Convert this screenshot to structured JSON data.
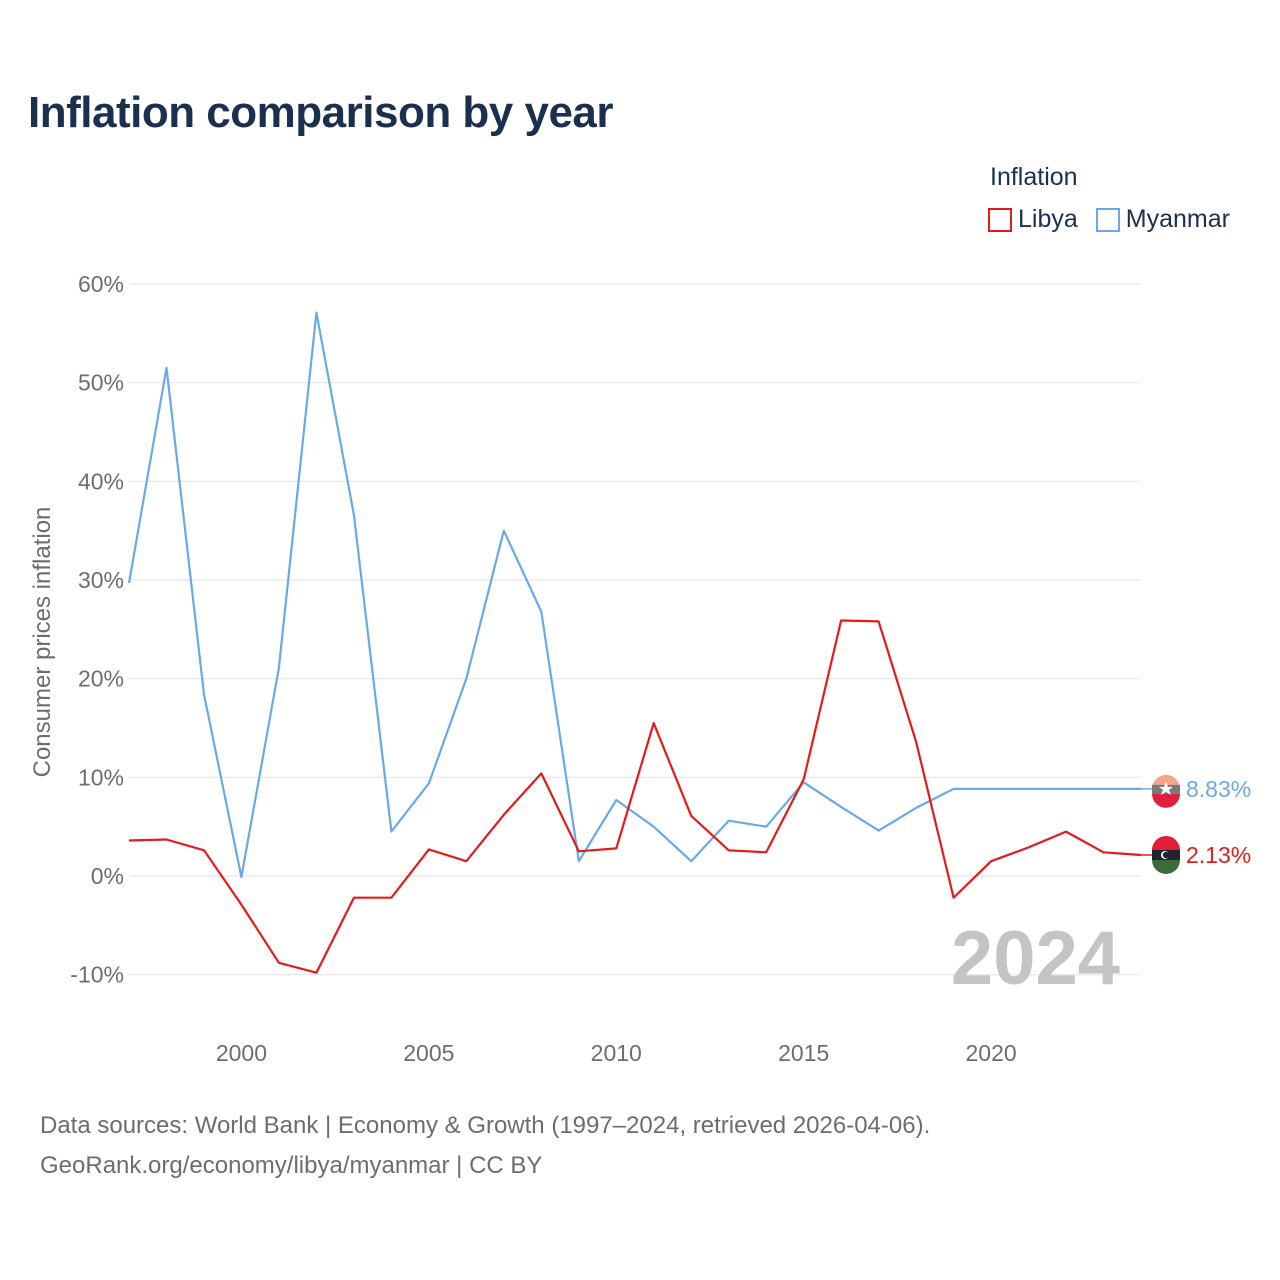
{
  "title": "Inflation comparison by year",
  "legend": {
    "title": "Inflation",
    "items": [
      {
        "label": "Libya",
        "color": "#e41a1c"
      },
      {
        "label": "Myanmar",
        "color": "#6aa9e6"
      }
    ]
  },
  "source": {
    "line1": "Data sources: World Bank | Economy & Growth (1997–2024, retrieved 2026-04-06).",
    "line2": "GeoRank.org/economy/libya/myanmar | CC BY"
  },
  "chart_data": {
    "type": "line",
    "title": "Inflation comparison by year",
    "xlabel": "",
    "ylabel": "Consumer prices inflation",
    "xlim": [
      1997,
      2024
    ],
    "ylim": [
      -13,
      62
    ],
    "x_ticks": [
      2000,
      2005,
      2010,
      2015,
      2020
    ],
    "y_ticks": [
      60,
      50,
      40,
      30,
      20,
      10,
      0,
      -10
    ],
    "y_tick_labels": [
      "60%",
      "50%",
      "40%",
      "30%",
      "20%",
      "10%",
      "0%",
      "-10%"
    ],
    "current_year_label": "2024",
    "x": [
      1997,
      1998,
      1999,
      2000,
      2001,
      2002,
      2003,
      2004,
      2005,
      2006,
      2007,
      2008,
      2009,
      2010,
      2011,
      2012,
      2013,
      2014,
      2015,
      2016,
      2017,
      2018,
      2019,
      2020,
      2021,
      2022,
      2023,
      2024
    ],
    "series": [
      {
        "name": "Myanmar",
        "color": "#6aa9e6",
        "values": [
          29.7,
          51.5,
          18.4,
          -0.1,
          21.1,
          57.1,
          36.6,
          4.5,
          9.4,
          20.0,
          35.0,
          26.8,
          1.5,
          7.7,
          5.0,
          1.5,
          5.6,
          5.0,
          9.5,
          7.0,
          4.6,
          6.9,
          8.83,
          8.83,
          8.83,
          8.83,
          8.83,
          8.83
        ],
        "end_label": "8.83%"
      },
      {
        "name": "Libya",
        "color": "#e41a1c",
        "values": [
          3.6,
          3.7,
          2.6,
          -2.9,
          -8.8,
          -9.8,
          -2.2,
          -2.2,
          2.7,
          1.5,
          6.2,
          10.4,
          2.5,
          2.8,
          15.5,
          6.1,
          2.6,
          2.4,
          9.8,
          25.9,
          25.8,
          13.6,
          -2.2,
          1.5,
          2.9,
          4.5,
          2.4,
          2.13
        ],
        "end_label": "2.13%"
      }
    ]
  }
}
